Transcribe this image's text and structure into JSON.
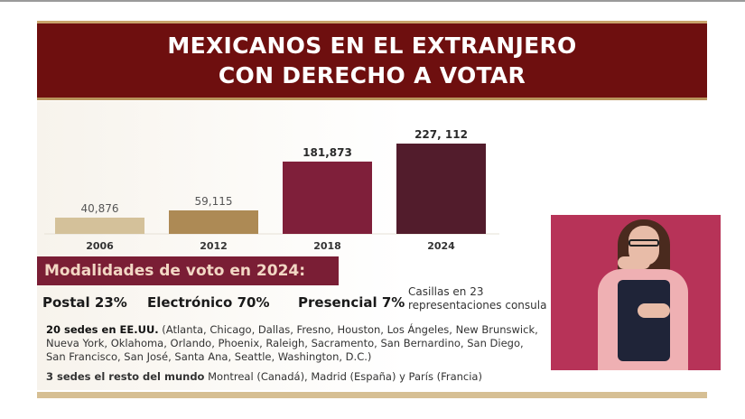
{
  "header": {
    "title_line1": "MEXICANOS EN EL EXTRANJERO",
    "title_line2": "CON DERECHO A VOTAR"
  },
  "chart_data": {
    "type": "bar",
    "title": "MEXICANOS EN EL EXTRANJERO CON DERECHO A VOTAR",
    "categories": [
      "2006",
      "2012",
      "2018",
      "2024"
    ],
    "values": [
      40876,
      59115,
      181873,
      227112
    ],
    "data_labels": [
      "40,876",
      "59,115",
      "181,873",
      "227, 112"
    ],
    "colors": [
      "#d4c19a",
      "#ad8a55",
      "#7f1f3a",
      "#521c2c"
    ],
    "label_bold": [
      false,
      false,
      true,
      true
    ],
    "xlabel": "",
    "ylabel": "",
    "ylim": [
      0,
      227112
    ],
    "grid": false,
    "legend": "none"
  },
  "modalidades": {
    "heading": "Modalidades de voto en 2024:",
    "postal": "Postal 23%",
    "electronico": "Electrónico 70%",
    "presencial": "Presencial 7%",
    "casillas_line1": "Casillas en 23",
    "casillas_line2": "representaciones consula"
  },
  "sedes": {
    "usa_bold": "20 sedes en EE.UU.",
    "usa_list": " (Atlanta, Chicago, Dallas, Fresno, Houston, Los Ángeles, New Brunswick, Nueva York, Oklahoma, Orlando, Phoenix, Raleigh, Sacramento, San Bernardino, San Diego, San Francisco, San José, Santa Ana, Seattle, Washington, D.C.)",
    "world_bold": "3 sedes el resto del mundo",
    "world_list": " Montreal (Canadá), Madrid (España) y París (Francia)"
  },
  "colors": {
    "banner": "#6e0f0f",
    "subheading": "#7a1e35",
    "gold": "#d6bf94",
    "signer_bg": "#b73358"
  }
}
